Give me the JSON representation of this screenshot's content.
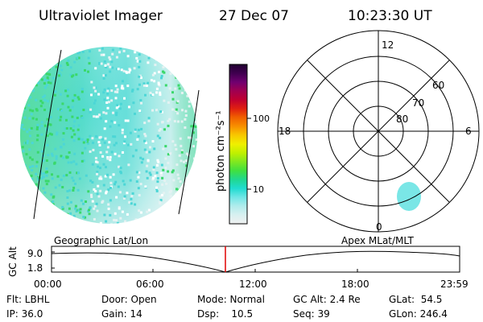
{
  "header": {
    "title": "Ultraviolet Imager",
    "date": "27 Dec 07",
    "time": "10:23:30 UT"
  },
  "colorbar": {
    "label": "photon cm⁻²s⁻¹",
    "ticks": [
      "100",
      "10"
    ],
    "colors": [
      "#f0f0f0",
      "#d8f0f0",
      "#b0ecec",
      "#70e6e6",
      "#20dcd0",
      "#20d890",
      "#40e040",
      "#80e820",
      "#c0f000",
      "#f0f000",
      "#f8c800",
      "#f89000",
      "#f06000",
      "#e02010",
      "#c00030",
      "#a00050",
      "#700070",
      "#400050",
      "#200030"
    ]
  },
  "polar": {
    "mlt_labels": {
      "top": "12",
      "left": "18",
      "right": "6",
      "bottom": "0"
    },
    "lat_labels": [
      "60",
      "70",
      "80"
    ],
    "spot_color": "#7ae6e6"
  },
  "imager": {
    "accent_green": "#3ad86a",
    "accent_cyan": "#4cd6d6",
    "pale": "#e4f2f2"
  },
  "timeline": {
    "left_caption": "Geographic Lat/Lon",
    "right_caption": "Apex MLat/MLT",
    "axis_label": "GC Alt",
    "y_ticks": [
      "9.0",
      "1.8"
    ],
    "x_ticks": [
      "00:00",
      "06:00",
      "12:00",
      "18:00",
      "23:59"
    ],
    "marker_color": "#e00000",
    "orbit_min_label_time": "10:23:30"
  },
  "status": {
    "flt": "Flt: LBHL",
    "ip": "IP: 36.0",
    "door": "Door: Open",
    "gain": "Gain: 14",
    "mode": "Mode: Normal",
    "dsp": "Dsp:    10.5",
    "gcalt": "GC Alt: 2.4 Re",
    "seq": "Seq: 39",
    "glat": "GLat:  54.5",
    "glon": "GLon: 246.4"
  }
}
